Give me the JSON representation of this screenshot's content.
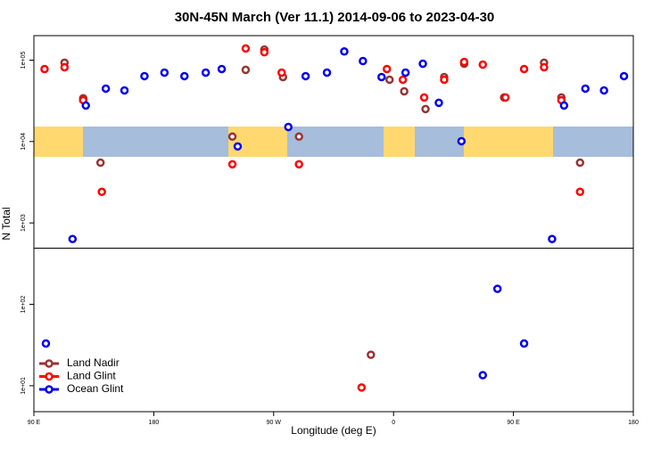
{
  "chart_data": {
    "type": "scatter",
    "title": "30N-45N March (Ver 11.1)   2014-09-06 to 2023-04-30",
    "xlabel": "Longitude (deg E)",
    "ylabel": "N Total",
    "xlim": [
      90,
      540
    ],
    "xticks": [
      {
        "value": 90,
        "label": "90 E"
      },
      {
        "value": 180,
        "label": "180"
      },
      {
        "value": 270,
        "label": "90 W"
      },
      {
        "value": 360,
        "label": "0"
      },
      {
        "value": 450,
        "label": "90 E"
      },
      {
        "value": 540,
        "label": "180"
      }
    ],
    "ylim": [
      4.8,
      200000
    ],
    "log_y": true,
    "yticks": [
      {
        "value": 10,
        "label": "1e+01"
      },
      {
        "value": 100,
        "label": "1e+02"
      },
      {
        "value": 1000,
        "label": "1e+03"
      },
      {
        "value": 10000,
        "label": "1e+04"
      },
      {
        "value": 100000,
        "label": "1e+05"
      }
    ],
    "hline": 490,
    "legend": "bottom-left",
    "series": [
      {
        "name": "Land Nadir",
        "color": "#993333",
        "x": [
          113,
          127,
          140,
          239,
          249,
          263,
          277,
          289,
          357,
          368,
          384,
          398,
          413,
          443,
          473,
          486,
          500,
          343
        ],
        "values": [
          93000,
          34000,
          5500,
          11500,
          76000,
          135000,
          62000,
          11500,
          57500,
          41400,
          25100,
          62000,
          90400,
          34800,
          93000,
          34800,
          5500,
          24
        ]
      },
      {
        "name": "Land Glint",
        "color": "#ff0000",
        "x": [
          98,
          113,
          127,
          141,
          239,
          249,
          263,
          276,
          289,
          355,
          367,
          383,
          398,
          413,
          427,
          444,
          458,
          473,
          486,
          500,
          336
        ],
        "values": [
          77800,
          81800,
          32200,
          2410,
          5260,
          139000,
          125000,
          70300,
          5260,
          77800,
          57500,
          34800,
          57500,
          95000,
          88100,
          34800,
          77800,
          81800,
          32200,
          2410,
          9.5
        ]
      },
      {
        "name": "Ocean Glint",
        "color": "#0000ee",
        "x": [
          119,
          129,
          144,
          158,
          173,
          188,
          203,
          219,
          231,
          243,
          281,
          294,
          310,
          323,
          337,
          351,
          369,
          382,
          394,
          411,
          479,
          488,
          504,
          518,
          533,
          99,
          427,
          438,
          458
        ],
        "values": [
          635,
          27700,
          44700,
          42500,
          63600,
          70300,
          63600,
          70300,
          77800,
          8710,
          15100,
          63600,
          70300,
          128000,
          97500,
          62000,
          70300,
          90400,
          29900,
          10100,
          635,
          27700,
          44700,
          42500,
          63600,
          33,
          13.5,
          155,
          33
        ]
      }
    ]
  }
}
